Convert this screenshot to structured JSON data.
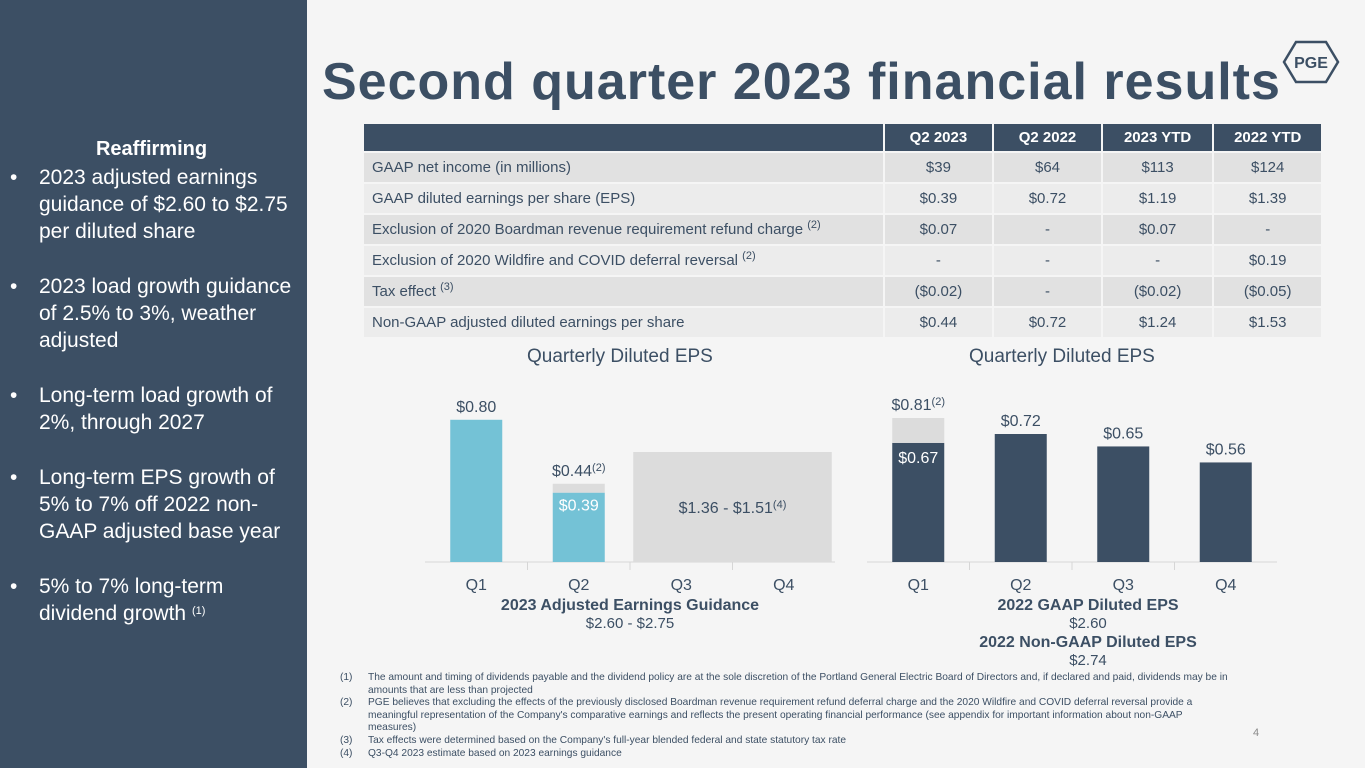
{
  "slide": {
    "title": "Second quarter 2023 financial results",
    "logo_text": "PGE",
    "page_number": "4"
  },
  "sidebar": {
    "heading": "Reaffirming",
    "bullet_char": "•",
    "bullets": [
      {
        "text": "2023 adjusted earnings guidance of $2.60 to $2.75 per diluted share",
        "note": ""
      },
      {
        "text": "2023 load growth guidance of 2.5% to 3%, weather adjusted",
        "note": ""
      },
      {
        "text": "Long-term load growth of 2%, through 2027",
        "note": ""
      },
      {
        "text": "Long-term EPS growth of 5% to 7% off 2022 non-GAAP adjusted base year",
        "note": ""
      },
      {
        "text": "5% to 7% long-term dividend growth ",
        "note": "(1)"
      }
    ]
  },
  "table": {
    "columns": [
      "",
      "Q2 2023",
      "Q2 2022",
      "2023 YTD",
      "2022 YTD"
    ],
    "rows": [
      {
        "label": "GAAP net income (in millions)",
        "note": "",
        "values": [
          "$39",
          "$64",
          "$113",
          "$124"
        ]
      },
      {
        "label": "GAAP diluted earnings per share (EPS)",
        "note": "",
        "values": [
          "$0.39",
          "$0.72",
          "$1.19",
          "$1.39"
        ]
      },
      {
        "label": "Exclusion of 2020 Boardman revenue requirement refund charge ",
        "note": "(2)",
        "values": [
          "$0.07",
          "-",
          "$0.07",
          "-"
        ]
      },
      {
        "label": "Exclusion of 2020 Wildfire and COVID deferral reversal ",
        "note": "(2)",
        "values": [
          "-",
          "-",
          "-",
          "$0.19"
        ]
      },
      {
        "label": "Tax effect ",
        "note": "(3)",
        "values": [
          "($0.02)",
          "-",
          "($0.02)",
          "($0.05)"
        ]
      },
      {
        "label": "Non-GAAP adjusted diluted earnings per share",
        "note": "",
        "values": [
          "$0.44",
          "$0.72",
          "$1.24",
          "$1.53"
        ]
      }
    ]
  },
  "chart_data": [
    {
      "type": "bar",
      "title": "Quarterly Diluted EPS",
      "categories": [
        "Q1",
        "Q2",
        "Q3",
        "Q4"
      ],
      "series": [
        {
          "values": [
            0.8,
            0.39,
            null,
            null
          ],
          "color": "#74c2d6"
        },
        {
          "values": [
            null,
            0.05,
            null,
            null
          ],
          "color": "#dcdcdc"
        }
      ],
      "range_bar": {
        "categories": [
          "Q3",
          "Q4"
        ],
        "min": 1.36,
        "max": 1.51,
        "color": "#dcdcdc"
      },
      "labels": {
        "Q1_top": "$0.80",
        "Q2_top": "$0.44",
        "Q2_top_note": "(2)",
        "Q2_inner": "$0.39",
        "range": "$1.36 - $1.51",
        "range_note": "(4)"
      },
      "caption_title": "2023 Adjusted Earnings Guidance",
      "caption_value": "$2.60 - $2.75",
      "ylim": [
        0,
        0.9
      ]
    },
    {
      "type": "bar",
      "title": "Quarterly Diluted EPS",
      "categories": [
        "Q1",
        "Q2",
        "Q3",
        "Q4"
      ],
      "series": [
        {
          "values": [
            0.67,
            0.72,
            0.65,
            0.56
          ],
          "color": "#3c4f64"
        },
        {
          "values": [
            0.14,
            null,
            null,
            null
          ],
          "color": "#dcdcdc"
        }
      ],
      "labels": {
        "Q1_top": "$0.81",
        "Q1_top_note": "(2)",
        "Q1_inner": "$0.67",
        "Q2_top": "$0.72",
        "Q3_top": "$0.65",
        "Q4_top": "$0.56"
      },
      "caption_title": "2022 GAAP Diluted EPS",
      "caption_value": "$2.60",
      "caption_title2": "2022 Non-GAAP Diluted EPS",
      "caption_value2": "$2.74",
      "ylim": [
        0,
        0.9
      ]
    }
  ],
  "footnotes": [
    {
      "num": "(1)",
      "text": "The amount and timing of dividends payable and the dividend policy are at the sole discretion of the Portland General Electric Board of Directors and, if declared and paid, dividends may be in amounts that are less than projected"
    },
    {
      "num": "(2)",
      "text": "PGE believes that excluding the effects of the previously disclosed Boardman revenue requirement refund deferral charge and the 2020 Wildfire and COVID deferral reversal provide a meaningful representation of the Company's comparative earnings and reflects the present operating financial performance (see appendix for important information about non-GAAP measures)"
    },
    {
      "num": "(3)",
      "text": "Tax effects were determined based on the Company's full-year blended federal and state statutory tax rate"
    },
    {
      "num": "(4)",
      "text": "Q3-Q4 2023 estimate based on 2023 earnings guidance"
    }
  ],
  "colors": {
    "navy": "#3c4f64",
    "light_blue": "#74c2d6",
    "gray": "#dcdcdc",
    "background": "#f5f5f5"
  }
}
